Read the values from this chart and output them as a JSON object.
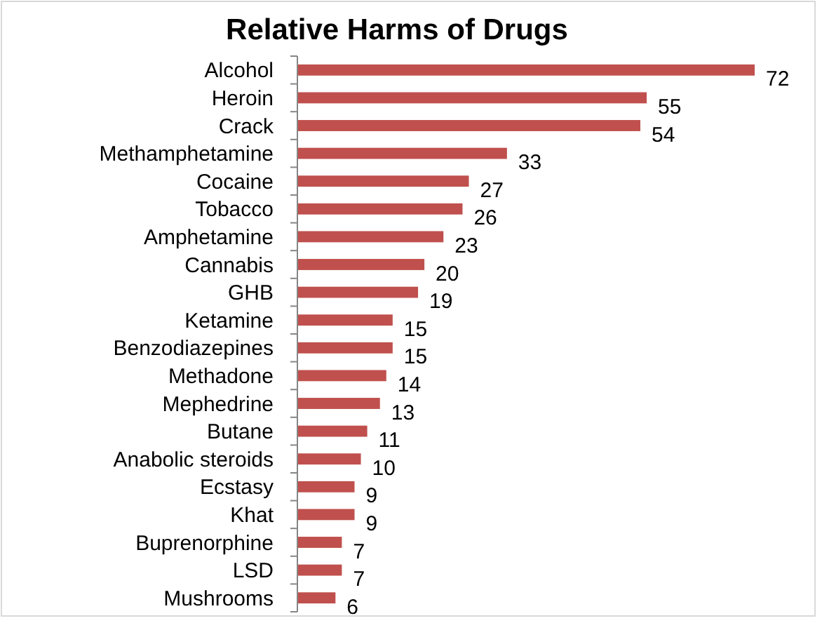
{
  "chart_data": {
    "type": "bar",
    "orientation": "horizontal",
    "title": "Relative Harms of Drugs",
    "categories": [
      "Alcohol",
      "Heroin",
      "Crack",
      "Methamphetamine",
      "Cocaine",
      "Tobacco",
      "Amphetamine",
      "Cannabis",
      "GHB",
      "Ketamine",
      "Benzodiazepines",
      "Methadone",
      "Mephedrine",
      "Butane",
      "Anabolic steroids",
      "Ecstasy",
      "Khat",
      "Buprenorphine",
      "LSD",
      "Mushrooms"
    ],
    "values": [
      72,
      55,
      54,
      33,
      27,
      26,
      23,
      20,
      19,
      15,
      15,
      14,
      13,
      11,
      10,
      9,
      9,
      7,
      7,
      6
    ],
    "color": "#c0504d",
    "data_labels": true,
    "grid": false,
    "tick_labels": "y"
  }
}
